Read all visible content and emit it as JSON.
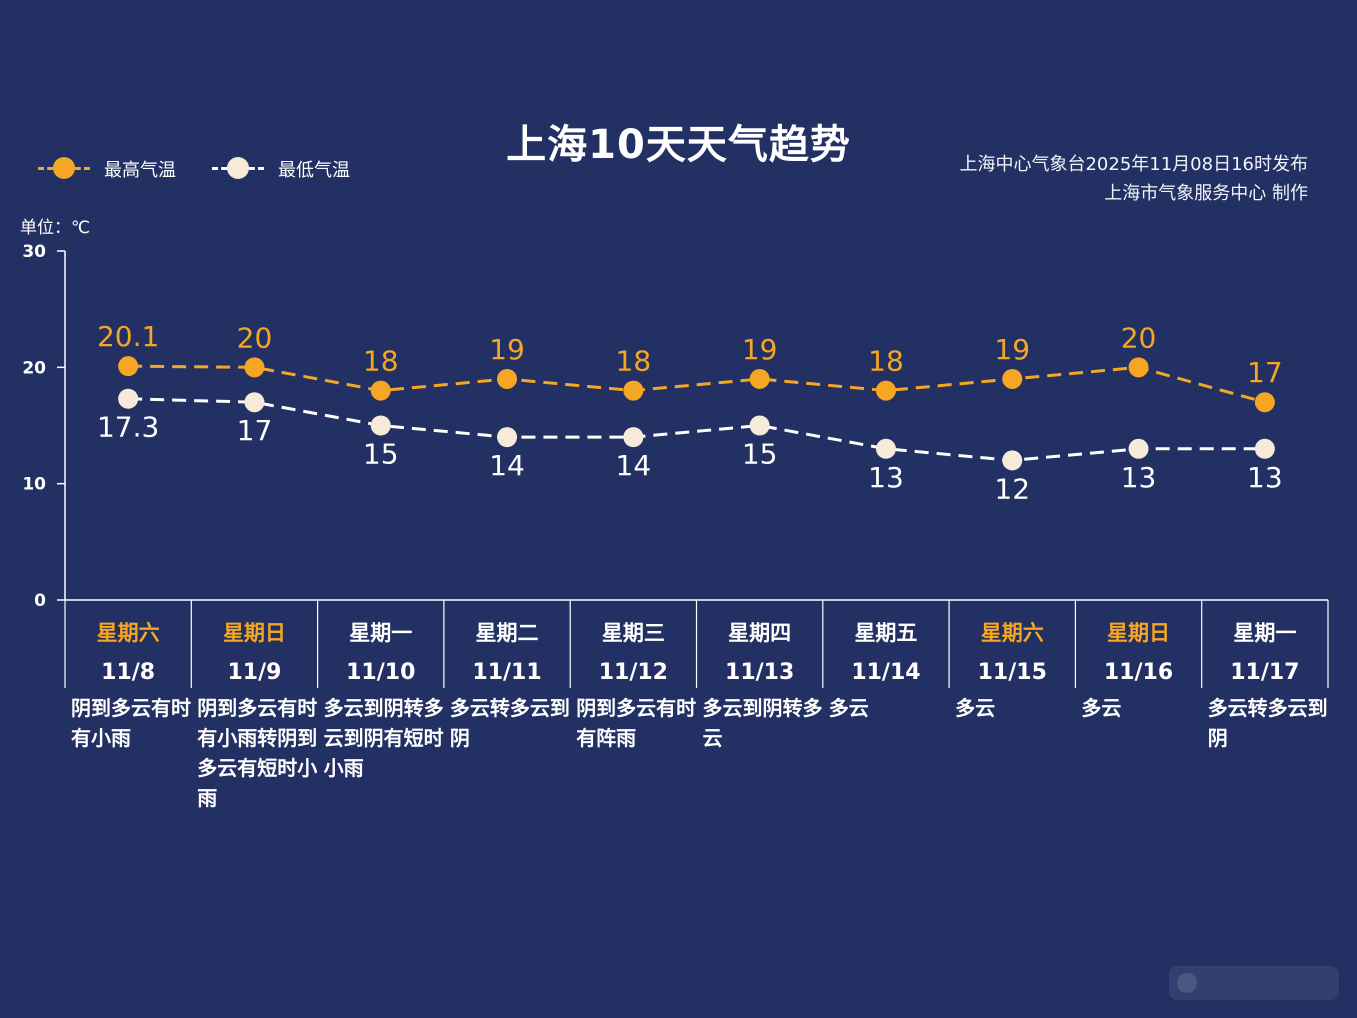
{
  "title": "上海10天天气趋势",
  "publisher": {
    "line1": "上海中心气象台2025年11月08日16时发布",
    "line2": "上海市气象服务中心  制作"
  },
  "legend": {
    "high": "最高气温",
    "low": "最低气温"
  },
  "unit": "单位：℃",
  "colors": {
    "background": "#223063",
    "high": "#f5a623",
    "low": "#ffffff",
    "low_marker": "#f6ead8",
    "weekend_label": "#f5a623",
    "weekday_label": "#ffffff"
  },
  "chart_data": {
    "type": "line",
    "title": "上海10天天气趋势",
    "ylabel": "单位：℃",
    "ylim": [
      0,
      30
    ],
    "yticks": [
      0,
      10,
      20,
      30
    ],
    "grid": false,
    "legend_position": "top-left",
    "weekdays": [
      "星期六",
      "星期日",
      "星期一",
      "星期二",
      "星期三",
      "星期四",
      "星期五",
      "星期六",
      "星期日",
      "星期一"
    ],
    "weekend": [
      true,
      true,
      false,
      false,
      false,
      false,
      false,
      true,
      true,
      false
    ],
    "categories": [
      "11/8",
      "11/9",
      "11/10",
      "11/11",
      "11/12",
      "11/13",
      "11/14",
      "11/15",
      "11/16",
      "11/17"
    ],
    "weather": [
      "阴到多云有时有小雨",
      "阴到多云有时有小雨转阴到多云有短时小雨",
      "多云到阴转多云到阴有短时小雨",
      "多云转多云到阴",
      "阴到多云有时有阵雨",
      "多云到阴转多云",
      "多云",
      "多云",
      "多云",
      "多云转多云到阴"
    ],
    "series": [
      {
        "name": "最高气温",
        "values": [
          20.1,
          20,
          18,
          19,
          18,
          19,
          18,
          19,
          20,
          17
        ],
        "labels": [
          "20.1",
          "20",
          "18",
          "19",
          "18",
          "19",
          "18",
          "19",
          "20",
          "17"
        ]
      },
      {
        "name": "最低气温",
        "values": [
          17.3,
          17,
          15,
          14,
          14,
          15,
          13,
          12,
          13,
          13
        ],
        "labels": [
          "17.3",
          "17",
          "15",
          "14",
          "14",
          "15",
          "13",
          "12",
          "13",
          "13"
        ]
      }
    ]
  }
}
